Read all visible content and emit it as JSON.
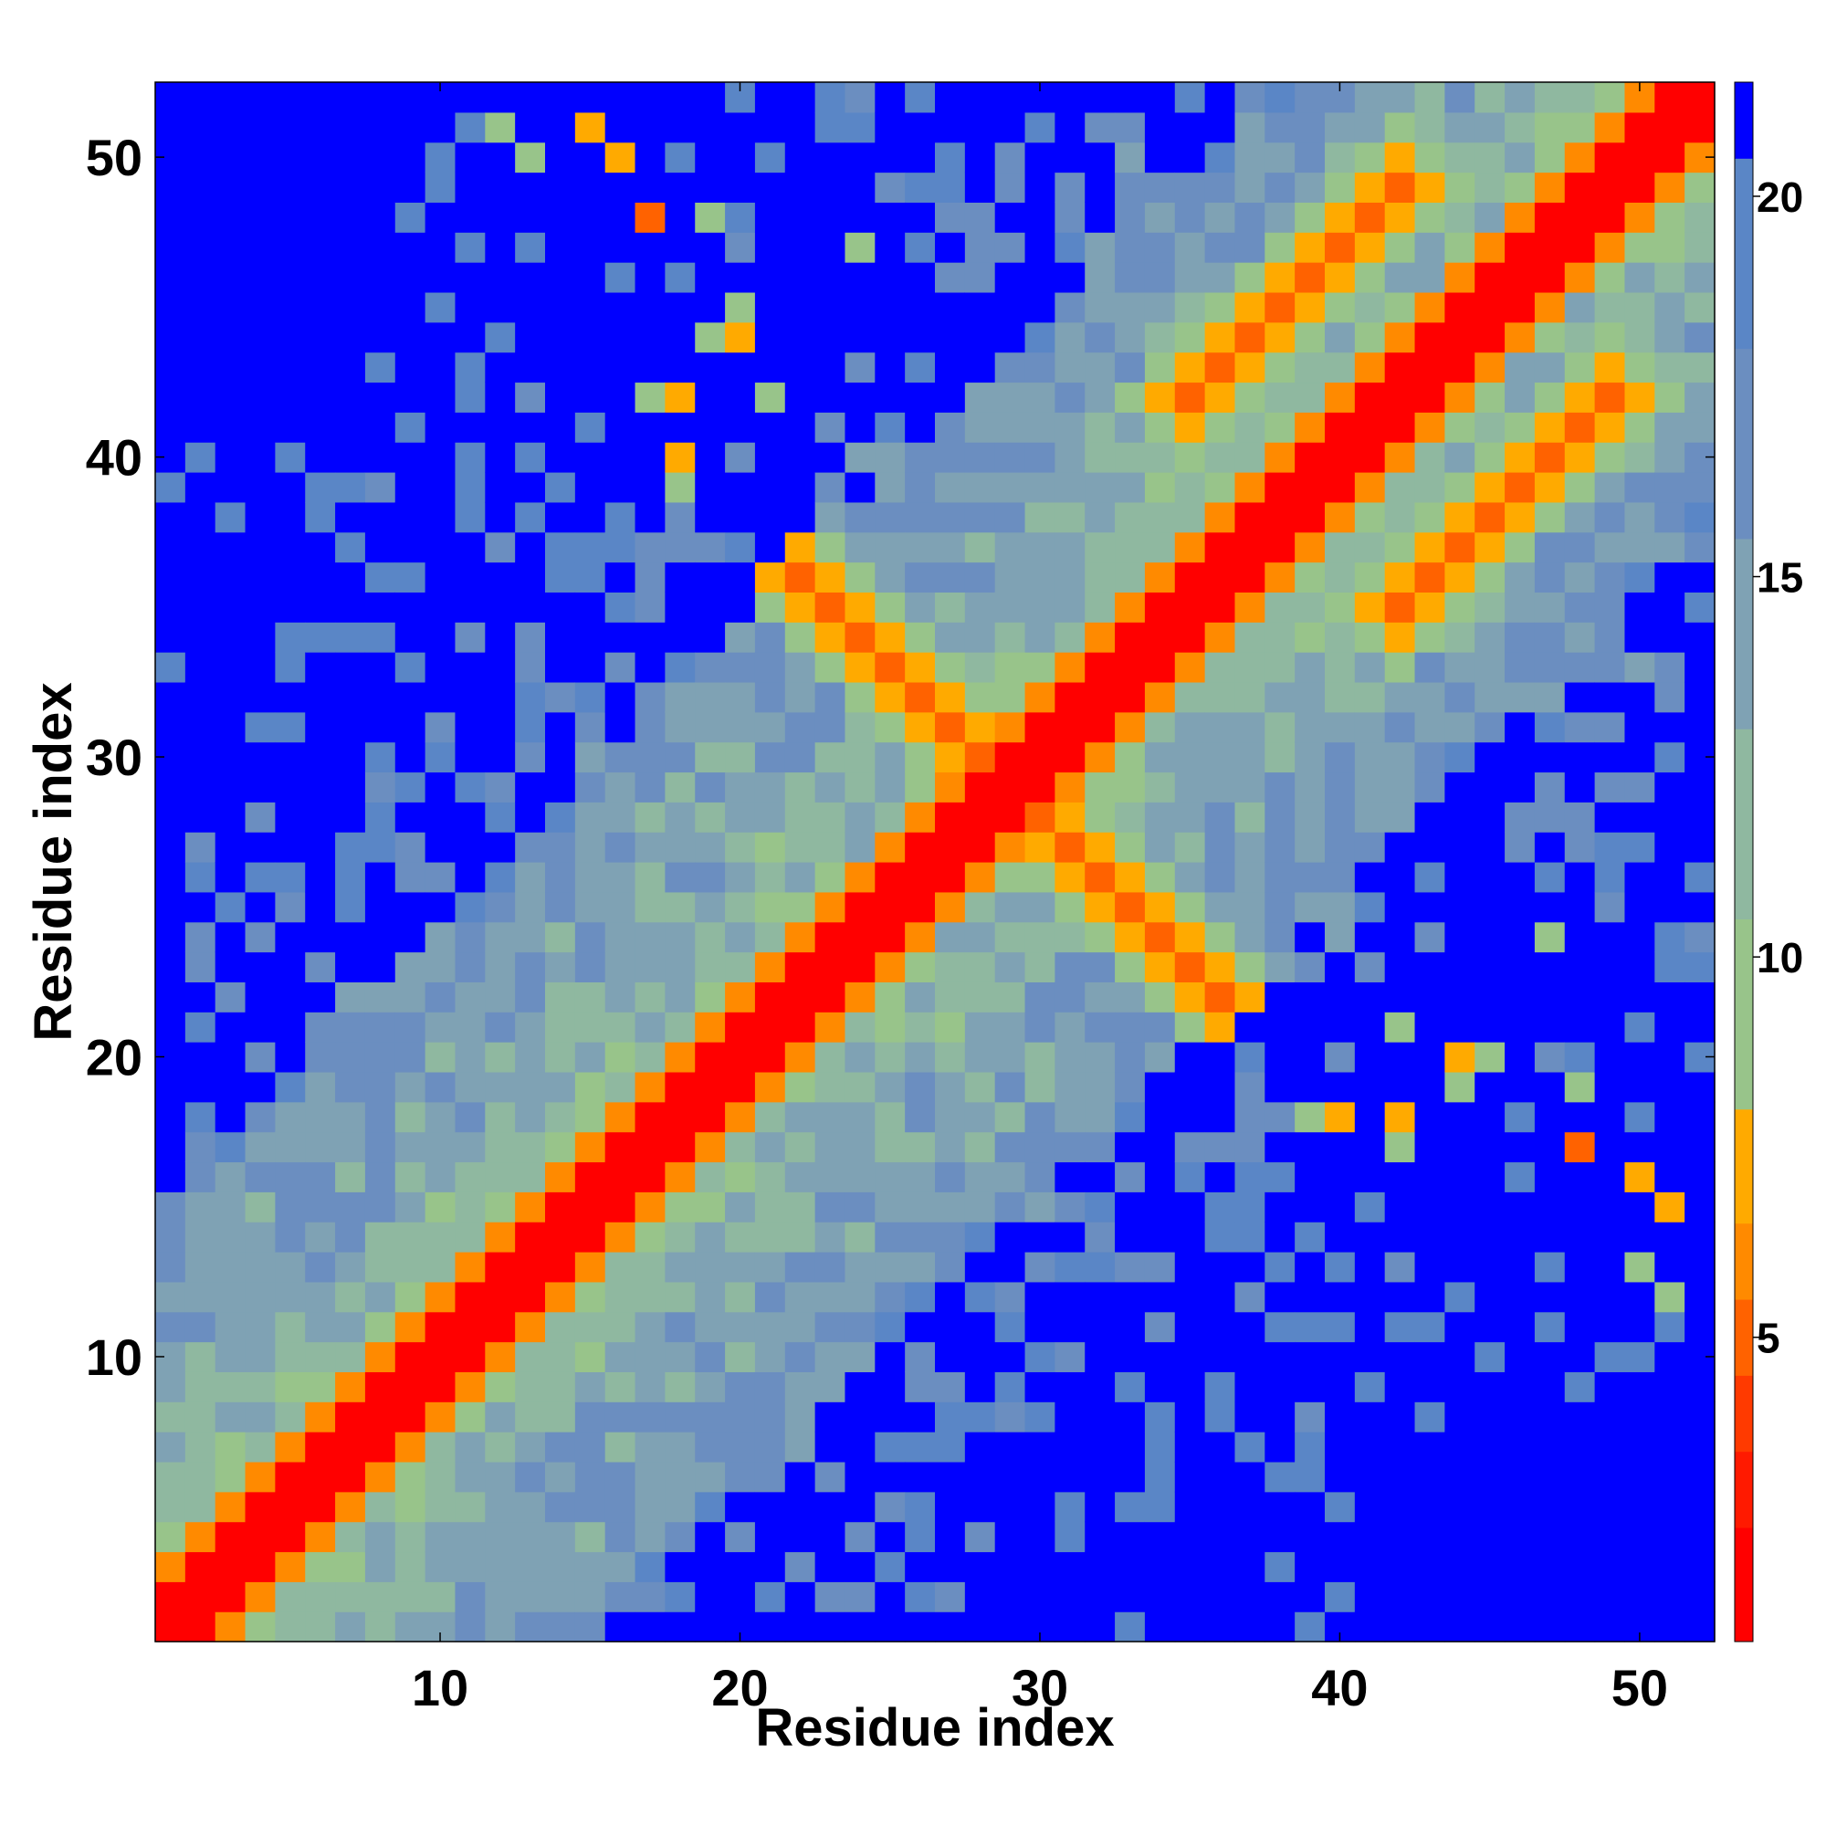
{
  "chart_data": {
    "type": "heatmap",
    "title": "",
    "xlabel": "Residue index",
    "ylabel": "Residue index",
    "n_residues": 52,
    "x_ticks": [
      10,
      20,
      30,
      40,
      50
    ],
    "y_ticks": [
      10,
      20,
      30,
      40,
      50
    ],
    "x_tick_labels": [
      "10",
      "20",
      "30",
      "40",
      "50"
    ],
    "y_tick_labels": [
      "10",
      "20",
      "30",
      "40",
      "50"
    ],
    "colorbar": {
      "range": [
        1,
        21.5
      ],
      "ticks": [
        5,
        10,
        15,
        20
      ],
      "tick_labels": [
        "5",
        "10",
        "15",
        "20"
      ],
      "level_colors": [
        "#ff0000",
        "#ff1a00",
        "#ff3a00",
        "#ff6200",
        "#ff8a00",
        "#ffaa00",
        "#98c48a",
        "#8fb8a0",
        "#7fa2b4",
        "#6b8ec0",
        "#5a86c6",
        "#0000ff"
      ],
      "level_bounds": [
        1,
        2.5,
        3.5,
        4.5,
        5.5,
        6.5,
        8,
        10.5,
        13,
        15.5,
        18,
        20.5,
        21.5
      ]
    },
    "colors": {
      "contact": "#ff0000",
      "close": "#ff8a00",
      "mid": "#98c48a",
      "far": "#5a86c6",
      "beyond": "#0000ff"
    },
    "z_notes": "distance matrix values per residue pair, saturating at the top level (blue)",
    "features": {
      "diagonal_band": [
        {
          "from": 1,
          "to": 52,
          "width": 2
        }
      ],
      "contact_strips": [
        {
          "i_start": 22,
          "j_start": 36,
          "length": 8,
          "orientation": "anti"
        },
        {
          "i_start": 35,
          "j_start": 42,
          "length": 8,
          "orientation": "parallel"
        },
        {
          "i_start": 18,
          "j_start": 41,
          "length": 6,
          "orientation": "parallel"
        },
        {
          "i_start": 14,
          "j_start": 51,
          "length": 4,
          "orientation": "anti"
        }
      ]
    }
  }
}
